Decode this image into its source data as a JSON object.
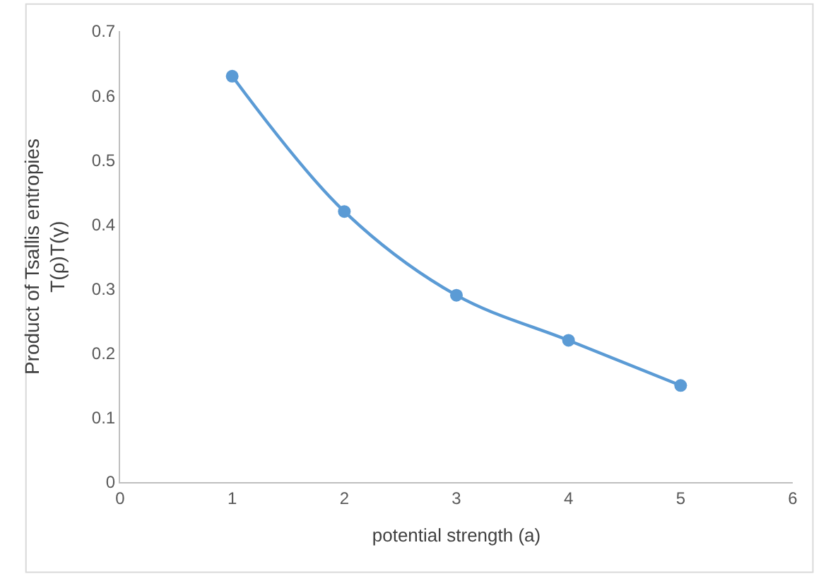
{
  "chart_data": {
    "type": "line",
    "xlabel": "potential strength (a)",
    "ylabel": "Product of Tsallis entropies\nT(ρ)T(γ)",
    "x": [
      1,
      2,
      3,
      4,
      5
    ],
    "series": [
      {
        "color": "#5b9bd5",
        "values": [
          0.63,
          0.42,
          0.29,
          0.22,
          0.15
        ]
      }
    ],
    "xlim": [
      0,
      6
    ],
    "xticks": [
      0,
      1,
      2,
      3,
      4,
      5,
      6
    ],
    "ylim": [
      0,
      0.7
    ],
    "yticks": [
      0,
      0.1,
      0.2,
      0.3,
      0.4,
      0.5,
      0.6,
      0.7
    ],
    "grid": false,
    "marker": "circle",
    "line_style": "solid"
  }
}
